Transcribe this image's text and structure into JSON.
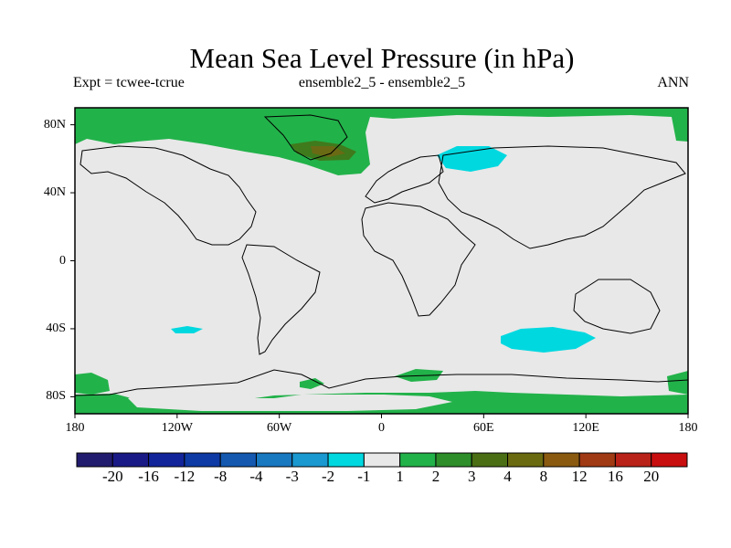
{
  "header": {
    "title": "Mean Sea Level Pressure (in hPa)",
    "expt": "Expt = tcwee-tcrue",
    "ensemble": "ensemble2_5 - ensemble2_5",
    "season": "ANN"
  },
  "axes": {
    "lat_labels": [
      {
        "text": "80N",
        "value": 80
      },
      {
        "text": "40N",
        "value": 40
      },
      {
        "text": "0",
        "value": 0
      },
      {
        "text": "40S",
        "value": -40
      },
      {
        "text": "80S",
        "value": -80
      }
    ],
    "lon_labels": [
      {
        "text": "180",
        "value": -180
      },
      {
        "text": "120W",
        "value": -120
      },
      {
        "text": "60W",
        "value": -60
      },
      {
        "text": "0",
        "value": 0
      },
      {
        "text": "60E",
        "value": 60
      },
      {
        "text": "120E",
        "value": 120
      },
      {
        "text": "180",
        "value": 180
      }
    ]
  },
  "colorbar": {
    "colors": [
      "#221c6e",
      "#1a1a86",
      "#12249a",
      "#0d3aa4",
      "#1458b0",
      "#1878c0",
      "#1a98d0",
      "#00d8e0",
      "#e8e8e8",
      "#22b24a",
      "#2e8e2a",
      "#4a6e14",
      "#6a6a10",
      "#8a5a10",
      "#a03a14",
      "#b82218",
      "#c80e0e"
    ],
    "labels": [
      "-20",
      "-16",
      "-12",
      "-8",
      "-4",
      "-3",
      "-2",
      "-1",
      "1",
      "2",
      "3",
      "4",
      "8",
      "12",
      "16",
      "20"
    ]
  },
  "chart_data": {
    "type": "heatmap",
    "title": "Mean Sea Level Pressure (in hPa)",
    "subtitle_left": "Expt = tcwee-tcrue",
    "subtitle_center": "ensemble2_5 - ensemble2_5",
    "subtitle_right": "ANN",
    "x_range": [
      -180,
      180
    ],
    "y_range": [
      -90,
      90
    ],
    "background_range": [
      -1,
      1
    ],
    "regions": [
      {
        "range": [
          1,
          2
        ],
        "location": "Arctic / Greenland / north polar band"
      },
      {
        "range": [
          2,
          4
        ],
        "location": "near Greenland / Iceland (~30W, 70N)"
      },
      {
        "range": [
          -2,
          -1
        ],
        "location": "Barents / Kara Sea (~45E, 65N)"
      },
      {
        "range": [
          -2,
          -1
        ],
        "location": "South Pacific (~115W, 40S)"
      },
      {
        "range": [
          -2,
          -1
        ],
        "location": "Southern Indian Ocean (~85E, 45S)"
      },
      {
        "range": [
          1,
          2
        ],
        "location": "Antarctic coastal band and Southern Ocean patches"
      }
    ]
  }
}
